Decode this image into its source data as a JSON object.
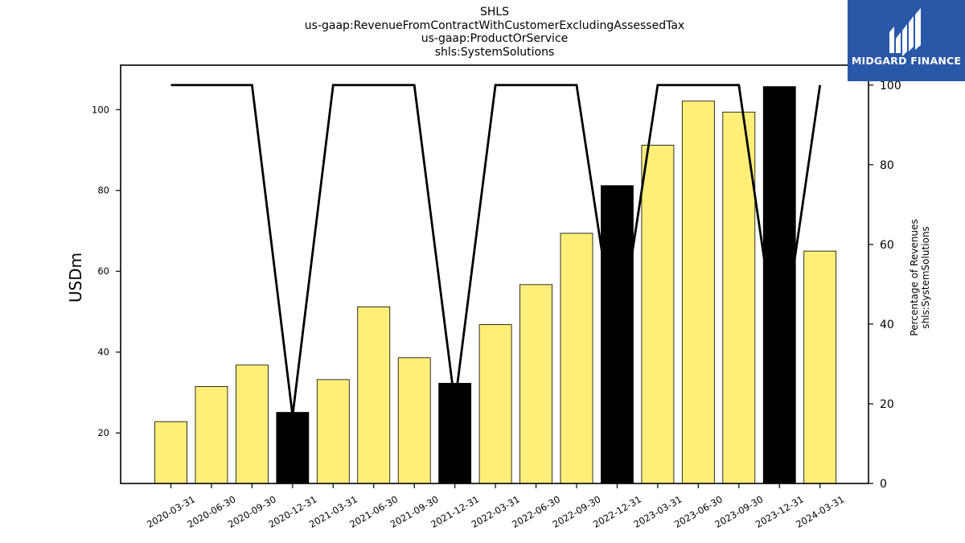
{
  "title_lines": [
    "SHLS",
    "us-gaap:RevenueFromContractWithCustomerExcludingAssessedTax",
    "us-gaap:ProductOrService",
    "shls:SystemSolutions"
  ],
  "logo": {
    "text": "MIDGARD FINANCE",
    "bg_color": "#2a58a8"
  },
  "chart_data": {
    "type": "bar",
    "categories": [
      "2020-03-31",
      "2020-06-30",
      "2020-09-30",
      "2020-12-31",
      "2021-03-31",
      "2021-06-30",
      "2021-09-30",
      "2021-12-31",
      "2022-03-31",
      "2022-06-30",
      "2022-09-30",
      "2022-12-31",
      "2023-03-31",
      "2023-06-30",
      "2023-09-30",
      "2023-12-31",
      "2024-03-31"
    ],
    "series": [
      {
        "type": "bar",
        "axis": "left",
        "values": [
          22.8,
          31.5,
          36.8,
          25.1,
          33.2,
          51.2,
          38.6,
          32.3,
          46.8,
          56.7,
          69.4,
          81.2,
          91.2,
          102.1,
          99.4,
          105.7,
          65.0
        ],
        "colors": [
          "#ffee77",
          "#ffee77",
          "#ffee77",
          "#000000",
          "#ffee77",
          "#ffee77",
          "#ffee77",
          "#000000",
          "#ffee77",
          "#ffee77",
          "#ffee77",
          "#000000",
          "#ffee77",
          "#ffee77",
          "#ffee77",
          "#000000",
          "#ffee77"
        ]
      },
      {
        "type": "line",
        "axis": "right",
        "values": [
          100,
          100,
          100,
          17,
          100,
          100,
          100,
          20,
          100,
          100,
          100,
          33,
          100,
          100,
          100,
          30,
          100
        ],
        "color": "#000000"
      }
    ],
    "ylabel": "USDm",
    "y2label_lines": [
      "Percentage of Revenues",
      "shls:SystemSolutions"
    ],
    "ylim": [
      7.5,
      111
    ],
    "y2lim": [
      0,
      105
    ],
    "yticks": [
      20,
      40,
      60,
      80,
      100
    ],
    "y2ticks": [
      0,
      20,
      40,
      60,
      80,
      100
    ],
    "bar_face_color": "#ffee77",
    "highlight_color": "#000000",
    "grid": false
  }
}
